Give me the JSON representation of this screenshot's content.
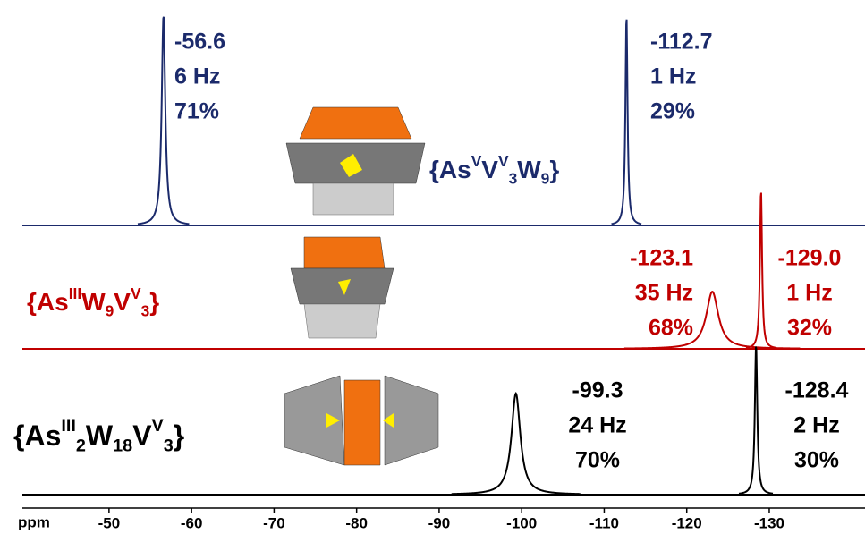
{
  "chart_data": {
    "type": "nmr",
    "xlabel": "ppm",
    "xlim": [
      -39.5,
      -141.6
    ],
    "xticks": [
      -50,
      -60,
      -70,
      -80,
      -90,
      -100,
      -110,
      -120,
      -130
    ],
    "series": [
      {
        "name_parts": [
          {
            "text": "{As"
          },
          {
            "text": "V",
            "sup": true
          },
          {
            "text": "V"
          },
          {
            "text": "V",
            "sup": true
          },
          {
            "text": "3",
            "sub": true
          },
          {
            "text": "W"
          },
          {
            "text": "9",
            "sub": true
          },
          {
            "text": "}"
          }
        ],
        "color": "#1b2a6b",
        "peaks": [
          -56.6,
          -112.7
        ],
        "widths": [
          6,
          1
        ],
        "width_labels": [
          "6 Hz",
          "1 Hz"
        ],
        "percent": [
          71,
          29
        ],
        "percent_labels": [
          "71%",
          "29%"
        ]
      },
      {
        "name_parts": [
          {
            "text": "{As"
          },
          {
            "text": "III",
            "sup": true
          },
          {
            "text": "W"
          },
          {
            "text": "9",
            "sub": true
          },
          {
            "text": "V"
          },
          {
            "text": "V",
            "sup": true
          },
          {
            "text": "3",
            "sub": true
          },
          {
            "text": "}"
          }
        ],
        "color": "#c00000",
        "peaks": [
          -123.1,
          -129.0
        ],
        "value_labels": [
          "-123.1",
          "-129.0"
        ],
        "widths": [
          35,
          1
        ],
        "width_labels": [
          "35 Hz",
          "1 Hz"
        ],
        "percent": [
          68,
          32
        ],
        "percent_labels": [
          "68%",
          "32%"
        ]
      },
      {
        "name_parts": [
          {
            "text": "{As"
          },
          {
            "text": "III",
            "sup": true
          },
          {
            "text": "2",
            "sub": true
          },
          {
            "text": "W"
          },
          {
            "text": "18",
            "sub": true
          },
          {
            "text": "V"
          },
          {
            "text": "V",
            "sup": true
          },
          {
            "text": "3",
            "sub": true
          },
          {
            "text": "}"
          }
        ],
        "color": "#000000",
        "peaks": [
          -99.3,
          -128.4
        ],
        "widths": [
          24,
          2
        ],
        "width_labels": [
          "24 Hz",
          "2 Hz"
        ],
        "percent": [
          70,
          30
        ],
        "percent_labels": [
          "70%",
          "30%"
        ]
      }
    ]
  }
}
